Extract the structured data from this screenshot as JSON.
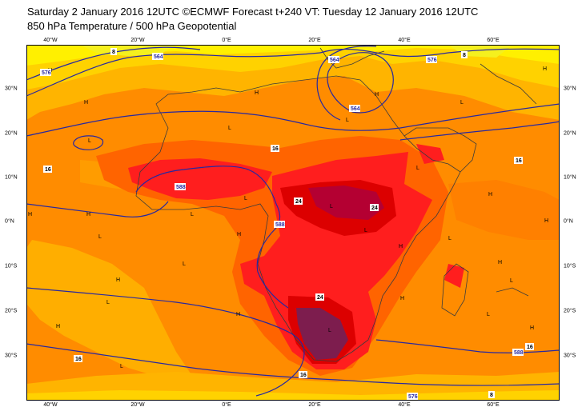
{
  "title_line1": "Saturday 2 January 2016 12UTC ©ECMWF Forecast t+240 VT: Tuesday 12 January 2016 12UTC",
  "title_line2": "850 hPa Temperature / 500 hPa Geopotential",
  "lon_labels": [
    "40°W",
    "20°W",
    "0°E",
    "20°E",
    "40°E",
    "60°E"
  ],
  "lat_labels": [
    "30°N",
    "20°N",
    "10°N",
    "0°N",
    "10°S",
    "20°S",
    "30°S"
  ],
  "contour_labels": {
    "geo_576_nw": "576",
    "geo_564_n": "564",
    "geo_564_ne": "564",
    "geo_564_low": "564",
    "geo_576_ne": "576",
    "geo_588_nw": "588",
    "geo_588_eq": "588",
    "geo_588_se": "588",
    "geo_576_s": "576",
    "t_8_nw": "8",
    "t_8_ne": "8",
    "t_8_s": "8",
    "t_16_w": "16",
    "t_16_sahara": "16",
    "t_16_e": "16",
    "t_16_sw": "16",
    "t_16_s": "16",
    "t_16_se": "16",
    "t_24_congo": "24",
    "t_24_eafrica": "24",
    "t_24_south": "24"
  },
  "pressure_markers": [
    "H",
    "L"
  ],
  "colors": {
    "yellow": "#f5f01e",
    "light_yellow": "#fff000",
    "gold": "#ffd200",
    "orange_light": "#ffb400",
    "orange": "#ff8c00",
    "dark_orange": "#ff6400",
    "red": "#ff1e1e",
    "deep_red": "#dc0000",
    "crimson": "#b40032",
    "maroon": "#7d1d4e",
    "contour_geo": "#2828a0",
    "coast": "#3c3c3c"
  }
}
